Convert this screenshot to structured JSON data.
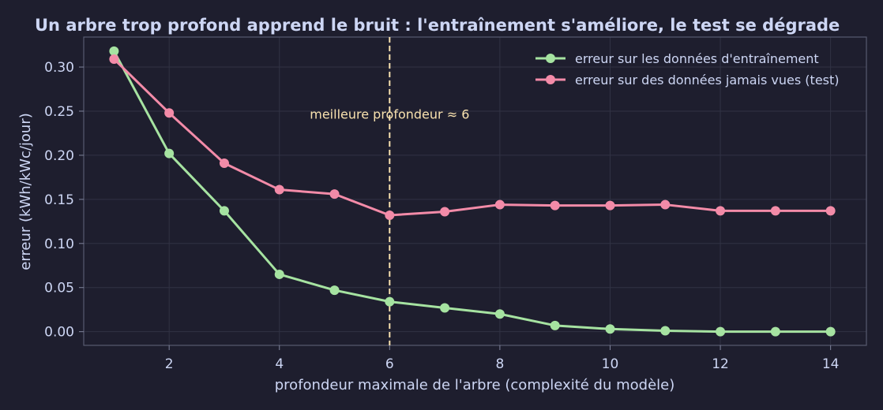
{
  "chart_data": {
    "type": "line",
    "title": "Un arbre trop profond apprend le bruit : l'entraînement s'améliore, le test se dégrade",
    "xlabel": "profondeur maximale de l'arbre (complexité du modèle)",
    "ylabel": "erreur (kWh/kWc/jour)",
    "x": [
      1,
      2,
      3,
      4,
      5,
      6,
      7,
      8,
      9,
      10,
      11,
      12,
      13,
      14
    ],
    "xlim": [
      0.45,
      14.65
    ],
    "ylim": [
      -0.0155,
      0.334
    ],
    "xticks": [
      2,
      4,
      6,
      8,
      10,
      12,
      14
    ],
    "yticks": [
      0.0,
      0.05,
      0.1,
      0.15,
      0.2,
      0.25,
      0.3
    ],
    "ytick_labels": [
      "0.00",
      "0.05",
      "0.10",
      "0.15",
      "0.20",
      "0.25",
      "0.30"
    ],
    "grid": true,
    "legend_position": "top-right",
    "series": [
      {
        "name": "erreur sur les données d'entraînement",
        "color": "#a6e3a1",
        "values": [
          0.318,
          0.202,
          0.137,
          0.065,
          0.047,
          0.034,
          0.027,
          0.02,
          0.007,
          0.003,
          0.001,
          0.0,
          0.0,
          0.0
        ]
      },
      {
        "name": "erreur sur des données jamais vues (test)",
        "color": "#f38ba8",
        "values": [
          0.309,
          0.248,
          0.191,
          0.161,
          0.156,
          0.132,
          0.136,
          0.144,
          0.143,
          0.143,
          0.144,
          0.137,
          0.137,
          0.137
        ]
      }
    ],
    "annotations": [
      {
        "type": "vline",
        "x": 6,
        "color": "#f9e2af"
      },
      {
        "type": "text",
        "text": "meilleure profondeur ≈ 6",
        "x": 6,
        "y": 0.246,
        "color": "#f9e2af"
      }
    ]
  }
}
